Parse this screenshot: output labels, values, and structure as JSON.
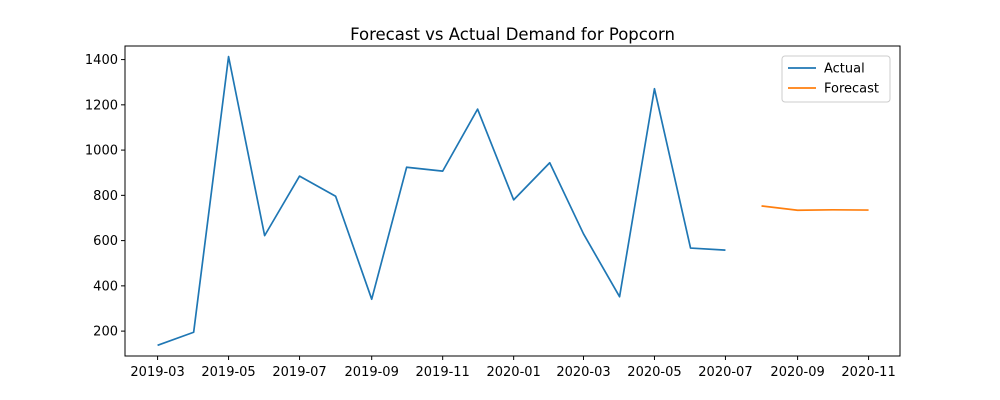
{
  "chart_data": {
    "type": "line",
    "title": "Forecast vs Actual Demand for Popcorn",
    "xlabel": "",
    "ylabel": "",
    "xlim": [
      "2019-02-01",
      "2020-11-28"
    ],
    "ylim": [
      90,
      1460
    ],
    "x_ticks": [
      "2019-03",
      "2019-05",
      "2019-07",
      "2019-09",
      "2019-11",
      "2020-01",
      "2020-03",
      "2020-05",
      "2020-07",
      "2020-09",
      "2020-11"
    ],
    "y_ticks": [
      200,
      400,
      600,
      800,
      1000,
      1200,
      1400
    ],
    "grid": false,
    "legend_position": "top-right",
    "series": [
      {
        "name": "Actual",
        "color": "#1f77b4",
        "x": [
          "2019-03-01",
          "2019-04-01",
          "2019-05-01",
          "2019-06-01",
          "2019-07-01",
          "2019-08-01",
          "2019-09-01",
          "2019-10-01",
          "2019-11-01",
          "2019-12-01",
          "2020-01-01",
          "2020-02-01",
          "2020-03-01",
          "2020-04-01",
          "2020-05-01",
          "2020-06-01",
          "2020-07-01"
        ],
        "values": [
          137,
          195,
          1413,
          622,
          885,
          796,
          341,
          924,
          907,
          1181,
          780,
          944,
          630,
          352,
          1271,
          567,
          558
        ]
      },
      {
        "name": "Forecast",
        "color": "#ff7f0e",
        "x": [
          "2020-08-01",
          "2020-09-01",
          "2020-10-01",
          "2020-11-01"
        ],
        "values": [
          753,
          734,
          736,
          735
        ]
      }
    ]
  }
}
